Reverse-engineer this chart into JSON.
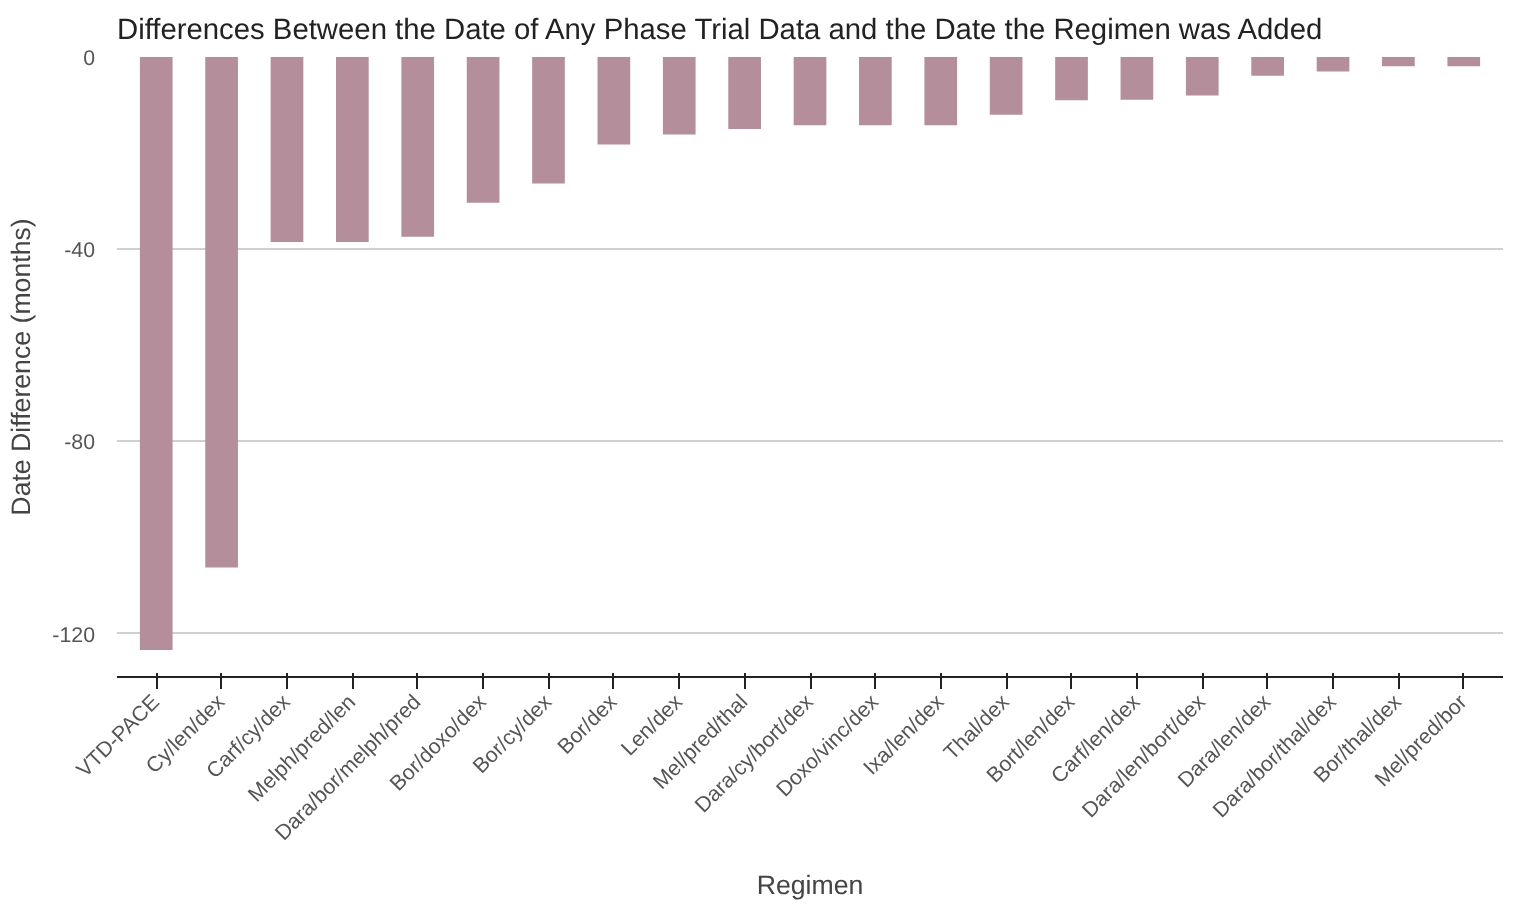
{
  "chart_data": {
    "type": "bar",
    "title": "Differences Between the Date of Any Phase Trial Data and the Date the Regimen was Added",
    "xlabel": "Regimen",
    "ylabel": "Date Difference (months)",
    "categories": [
      "VTD-PACE",
      "Cy/len/dex",
      "Carf/cy/dex",
      "Melph/pred/len",
      "Dara/bor/melph/pred",
      "Bor/doxo/dex",
      "Bor/cy/dex",
      "Bor/dex",
      "Len/dex",
      "Mel/pred/thal",
      "Dara/cy/bort/dex",
      "Doxo/vinc/dex",
      "Ixa/len/dex",
      "Thal/dex",
      "Bort/len/dex",
      "Carf/len/dex",
      "Dara/len/bort/dex",
      "Dara/len/dex",
      "Dara/bor/thal/dex",
      "Bor/thal/dex",
      "Mel/pred/bor"
    ],
    "values": [
      -123.4,
      -106.2,
      -38.5,
      -38.5,
      -37.4,
      -30.3,
      -26.3,
      -18.2,
      -16.1,
      -15.0,
      -14.2,
      -14.2,
      -14.2,
      -12.0,
      -9.0,
      -8.9,
      -8.0,
      -3.9,
      -3.0,
      -1.9,
      -1.9
    ],
    "color": "#b48e9a",
    "ylim": [
      -129,
      0
    ],
    "yticks": [
      0,
      -40,
      -80,
      -120
    ],
    "grid": "y"
  }
}
